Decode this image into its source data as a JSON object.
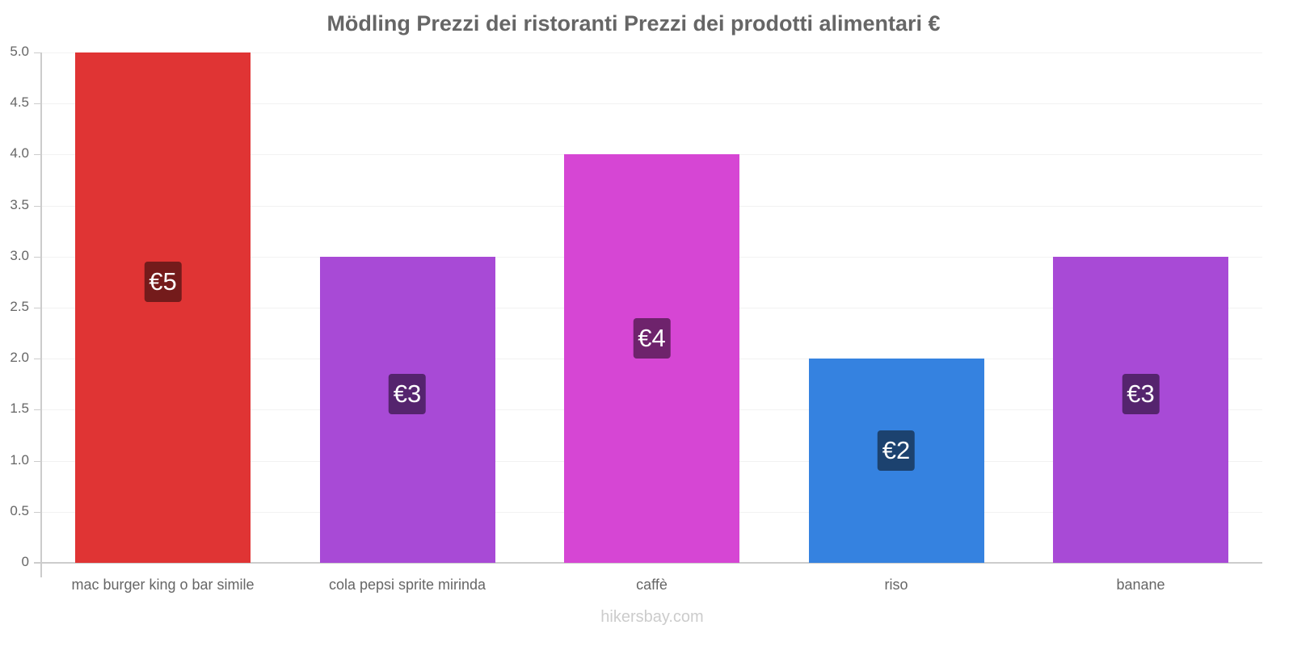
{
  "header": {
    "title": "Mödling Prezzi dei ristoranti Prezzi dei prodotti alimentari €"
  },
  "footer": {
    "watermark": "hikersbay.com"
  },
  "axis": {
    "y_ticks": [
      "0",
      "0.5",
      "1.0",
      "1.5",
      "2.0",
      "2.5",
      "3.0",
      "3.5",
      "4.0",
      "4.5",
      "5.0"
    ]
  },
  "bars": [
    {
      "category": "mac burger king o bar simile",
      "value": 5,
      "label": "€5",
      "color": "#e03434",
      "label_bg": "#741b1b"
    },
    {
      "category": "cola pepsi sprite mirinda",
      "value": 3,
      "label": "€3",
      "color": "#a84ad6",
      "label_bg": "#55246e"
    },
    {
      "category": "caffè",
      "value": 4,
      "label": "€4",
      "color": "#d646d4",
      "label_bg": "#6e236c"
    },
    {
      "category": "riso",
      "value": 2,
      "label": "€2",
      "color": "#3582e0",
      "label_bg": "#1c426f"
    },
    {
      "category": "banane",
      "value": 3,
      "label": "€3",
      "color": "#a84ad6",
      "label_bg": "#55246e"
    }
  ],
  "chart_data": {
    "type": "bar",
    "title": "Mödling Prezzi dei ristoranti Prezzi dei prodotti alimentari €",
    "categories": [
      "mac burger king o bar simile",
      "cola pepsi sprite mirinda",
      "caffè",
      "riso",
      "banane"
    ],
    "values": [
      5,
      3,
      4,
      2,
      3
    ],
    "data_labels": [
      "€5",
      "€3",
      "€4",
      "€2",
      "€3"
    ],
    "colors": [
      "#e03434",
      "#a84ad6",
      "#d646d4",
      "#3582e0",
      "#a84ad6"
    ],
    "xlabel": "",
    "ylabel": "",
    "ylim": [
      0,
      5
    ],
    "yticks": [
      0,
      0.5,
      1.0,
      1.5,
      2.0,
      2.5,
      3.0,
      3.5,
      4.0,
      4.5,
      5.0
    ],
    "grid": true,
    "legend": null,
    "watermark": "hikersbay.com"
  }
}
